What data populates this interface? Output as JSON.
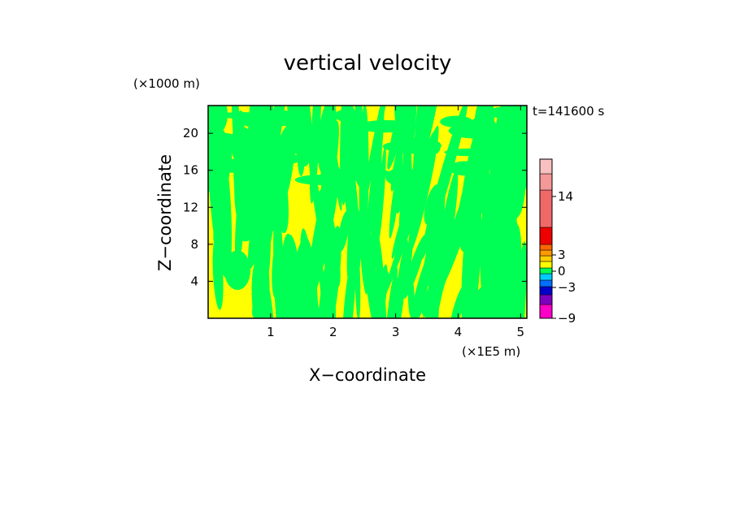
{
  "chart_data": {
    "type": "contour",
    "title": "vertical velocity",
    "xlabel": "X−coordinate",
    "ylabel": "Z−coordinate",
    "x_unit": "(×1E5 m)",
    "y_unit": "(×1000 m)",
    "time_label": "t=141600 s",
    "xlim": [
      0,
      5.1
    ],
    "ylim": [
      0,
      23
    ],
    "x_ticks": [
      1,
      2,
      3,
      4,
      5
    ],
    "y_ticks": [
      4,
      8,
      12,
      16,
      20
    ],
    "field_colors": {
      "positive": "#ffff00",
      "negative": "#00ff55"
    },
    "colorbar": {
      "labels": [
        "14",
        "3",
        "0",
        "−3",
        "−9"
      ],
      "levels": [
        {
          "color": "#ff00c8"
        },
        {
          "color": "#8000c0"
        },
        {
          "color": "#0000cc"
        },
        {
          "color": "#0070ff"
        },
        {
          "color": "#00ccff"
        },
        {
          "color": "#00ff55"
        },
        {
          "color": "#ffff00"
        },
        {
          "color": "#ffcc00"
        },
        {
          "color": "#ff9900"
        },
        {
          "color": "#ff6600"
        },
        {
          "color": "#ee0000"
        },
        {
          "color": "#f06868"
        },
        {
          "color": "#f49898"
        },
        {
          "color": "#f8c0c0"
        }
      ]
    }
  }
}
